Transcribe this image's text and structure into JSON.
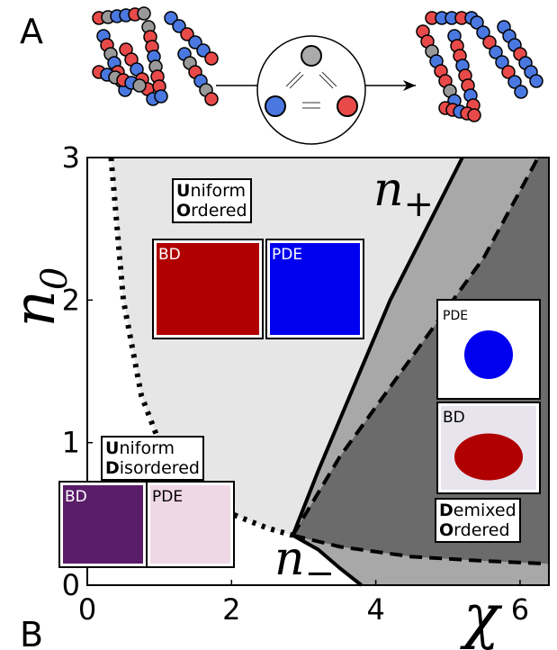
{
  "chart_data": {
    "type": "phase-diagram",
    "panel_labels": [
      "A",
      "B"
    ],
    "x_label": "χ",
    "y_label": {
      "text": "n",
      "sub": "0"
    },
    "xlim": [
      0,
      6.4
    ],
    "ylim": [
      0,
      3
    ],
    "xticks": [
      0,
      2,
      4,
      6
    ],
    "yticks": [
      0,
      1,
      2,
      3
    ],
    "region_colors": [
      "#e6e6e6",
      "#a8a8a8",
      "#6b6b6b"
    ],
    "series": [
      {
        "style": "dotted",
        "color": "#000000",
        "x": [
          0.33,
          0.5,
          0.75,
          1,
          1.5,
          2,
          2.5,
          2.85
        ],
        "values": [
          3,
          2,
          1.33,
          1,
          0.67,
          0.5,
          0.4,
          0.35
        ]
      },
      {
        "style": "solid",
        "color": "#000000",
        "x": [
          2.85,
          3.2,
          3.7,
          4.2,
          4.7,
          5.2
        ],
        "values": [
          0.35,
          0.8,
          1.4,
          2.0,
          2.5,
          3
        ]
      },
      {
        "style": "solid",
        "color": "#000000",
        "x": [
          2.85,
          3.2,
          3.5,
          3.8
        ],
        "values": [
          0.35,
          0.25,
          0.12,
          0
        ]
      },
      {
        "style": "dashed",
        "color": "#000000",
        "x": [
          2.85,
          3.5,
          4.5,
          5.5,
          6.25
        ],
        "values": [
          0.35,
          0.9,
          1.6,
          2.3,
          3
        ]
      },
      {
        "style": "dashed",
        "color": "#000000",
        "x": [
          2.85,
          3.5,
          4.5,
          5.5,
          6.4
        ],
        "values": [
          0.35,
          0.27,
          0.2,
          0.17,
          0.15
        ]
      }
    ],
    "curve_labels": [
      {
        "text": "n",
        "sub": "+"
      },
      {
        "text": "n",
        "sub": "−"
      }
    ],
    "phase_labels": [
      [
        "Uniform",
        "Ordered"
      ],
      [
        "Uniform",
        "Disordered"
      ],
      [
        "Demixed",
        "Ordered"
      ]
    ],
    "insets": [
      {
        "label": "BD",
        "color": "#b00000"
      },
      {
        "label": "PDE",
        "color": "#0000ee"
      },
      {
        "label": "BD",
        "color": "#5a1d6a"
      },
      {
        "label": "PDE",
        "color": "#efd8e6"
      },
      {
        "label": "PDE",
        "color": "#ffffff"
      },
      {
        "label": "BD",
        "color": "#e8e4ee"
      }
    ]
  }
}
